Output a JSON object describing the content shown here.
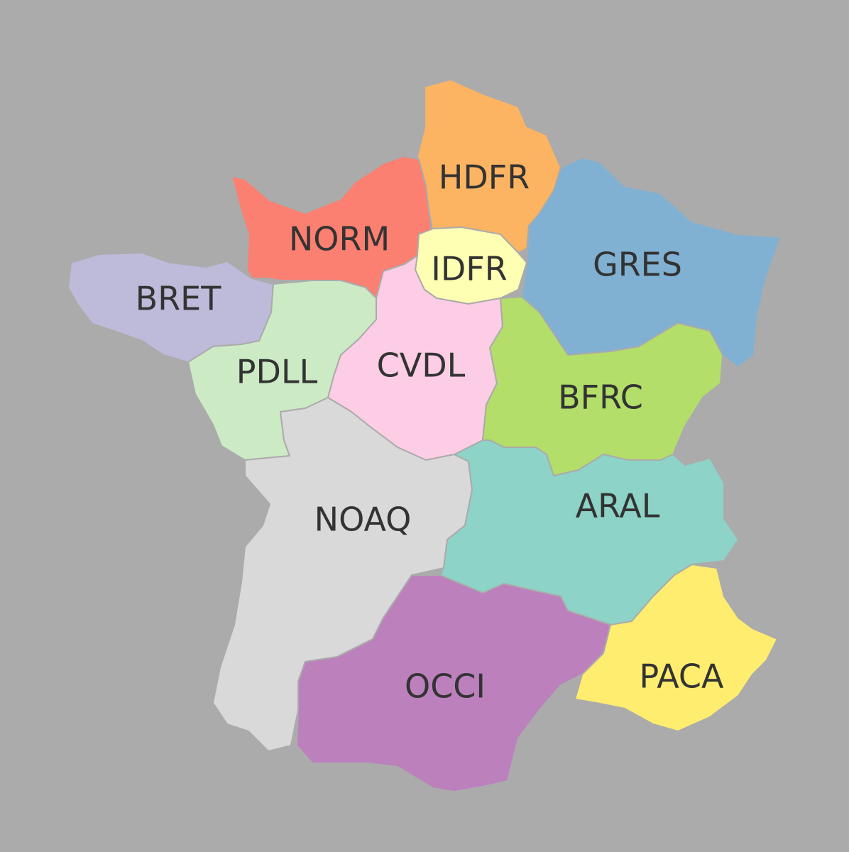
{
  "map": {
    "background_color": "#ababab",
    "label_color": "#333333",
    "regions": {
      "hdfr": {
        "label": "HDFR",
        "color": "#fdb462"
      },
      "norm": {
        "label": "NORM",
        "color": "#fb8072"
      },
      "idfr": {
        "label": "IDFR",
        "color": "#ffffb3"
      },
      "gres": {
        "label": "GRES",
        "color": "#80b1d3"
      },
      "bret": {
        "label": "BRET",
        "color": "#bebada"
      },
      "pdll": {
        "label": "PDLL",
        "color": "#ccebc5"
      },
      "cvdl": {
        "label": "CVDL",
        "color": "#fccde5"
      },
      "bfrc": {
        "label": "BFRC",
        "color": "#b3de69"
      },
      "noaq": {
        "label": "NOAQ",
        "color": "#d9d9d9"
      },
      "aral": {
        "label": "ARAL",
        "color": "#8dd3c7"
      },
      "occi": {
        "label": "OCCI",
        "color": "#bc80bd"
      },
      "paca": {
        "label": "PACA",
        "color": "#ffed6f"
      }
    }
  }
}
